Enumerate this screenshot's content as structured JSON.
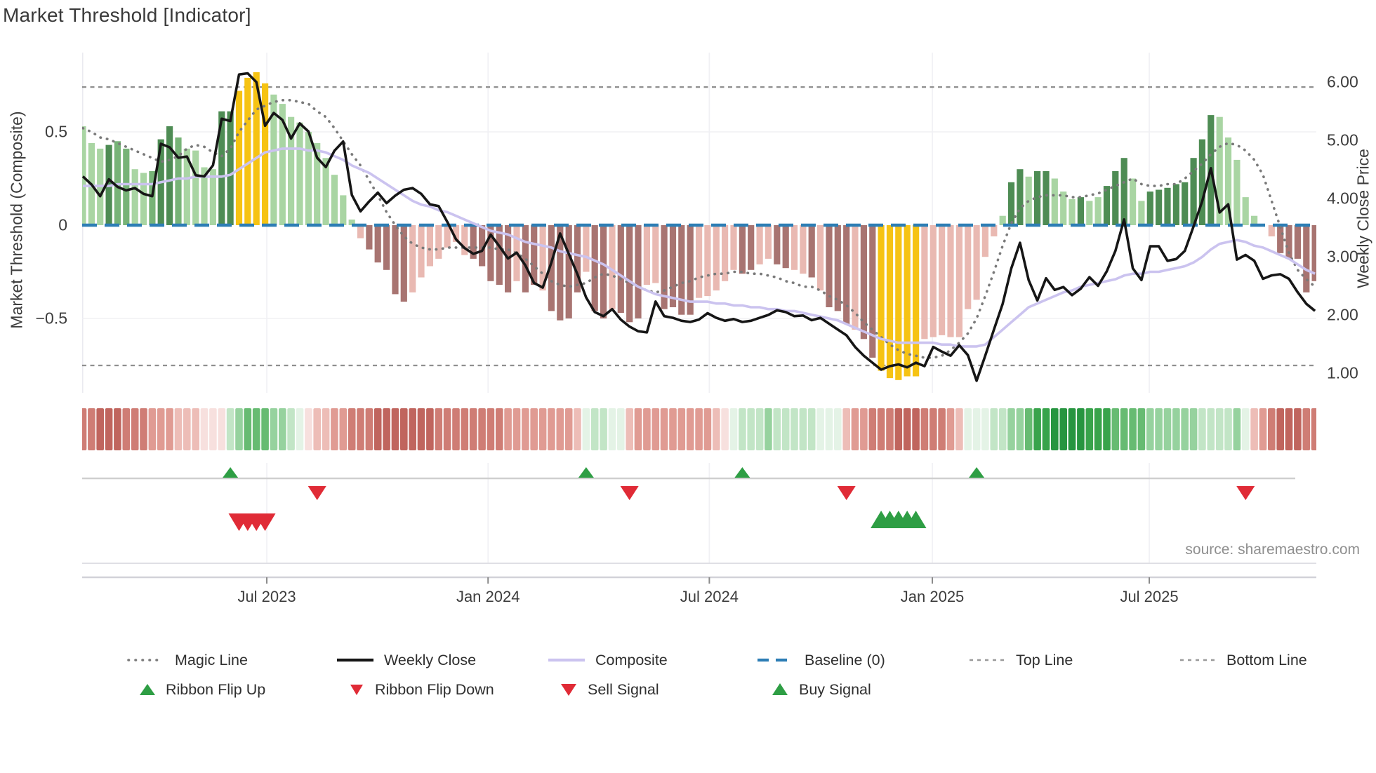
{
  "title": "Market Threshold [Indicator]",
  "source_credit": "source: sharemaestro.com",
  "left_axis": {
    "title": "Market Threshold (Composite)",
    "ticks": [
      {
        "label": "0.5",
        "value": 0.5
      },
      {
        "label": "0",
        "value": 0
      },
      {
        "label": "−0.5",
        "value": -0.5
      }
    ]
  },
  "right_axis": {
    "title": "Weekly Close Price",
    "ticks": [
      {
        "label": "6.00",
        "value": 6
      },
      {
        "label": "5.00",
        "value": 5
      },
      {
        "label": "4.00",
        "value": 4
      },
      {
        "label": "3.00",
        "value": 3
      },
      {
        "label": "2.00",
        "value": 2
      },
      {
        "label": "1.00",
        "value": 1
      }
    ]
  },
  "x_axis": {
    "ticks": [
      {
        "label": "Jul 2023",
        "week": 21.2
      },
      {
        "label": "Jan 2024",
        "week": 46.7
      },
      {
        "label": "Jul 2024",
        "week": 72.2
      },
      {
        "label": "Jan 2025",
        "week": 97.9
      },
      {
        "label": "Jul 2025",
        "week": 122.9
      }
    ]
  },
  "legend": {
    "row1": [
      {
        "label": "Magic Line",
        "swatch": "dotted-gray"
      },
      {
        "label": "Weekly Close",
        "swatch": "solid-black"
      },
      {
        "label": "Composite",
        "swatch": "solid-lavender"
      },
      {
        "label": "Baseline (0)",
        "swatch": "dashed-blue"
      },
      {
        "label": "Top Line",
        "swatch": "dotted-light"
      },
      {
        "label": "Bottom Line",
        "swatch": "dotted-light"
      }
    ],
    "row2": [
      {
        "label": "Ribbon Flip Up",
        "marker": "triangle-up-green"
      },
      {
        "label": "Ribbon Flip Down",
        "marker": "triangle-down-red"
      },
      {
        "label": "Sell Signal",
        "marker": "triangle-down-red"
      },
      {
        "label": "Buy Signal",
        "marker": "triangle-up-green"
      }
    ]
  },
  "colors": {
    "close_line": "#161616",
    "composite_line": "#cbc3ef",
    "magic_line": "#7a7a7a",
    "baseline": "#2d7eb5",
    "band_lines": "#8f8f8f",
    "grid": "#f0f0f4",
    "spine": "#e9e9ef",
    "flip_line": "#cfcfcf",
    "signal_green": "#2e9e44",
    "signal_red": "#e02b36",
    "bar_palette": {
      "L": "#a9d5a3",
      "M": "#77b377",
      "D": "#4e8c54",
      "G": "#f6c313",
      "p": "#e9b9b2",
      "m": "#a87471"
    },
    "ribbon_palette": {
      "r0": "#f7e0de",
      "r1": "#edbdb7",
      "r2": "#e09b93",
      "r3": "#cf7d75",
      "r4": "#c0655e",
      "g0": "#e4f3e6",
      "g1": "#c2e5c6",
      "g2": "#96d29e",
      "g3": "#67bb72",
      "g4": "#38a34b",
      "g5": "#279540"
    }
  },
  "signals": {
    "flip_up_weeks": [
      17,
      58,
      76,
      103
    ],
    "flip_down_weeks": [
      27,
      63,
      88,
      134
    ],
    "sell_weeks": [
      18,
      19,
      20,
      21
    ],
    "buy_weeks": [
      92,
      93,
      94,
      95,
      96
    ]
  },
  "chart_data": {
    "type": "bar+line",
    "title": "Market Threshold [Indicator]",
    "n_weeks": 143,
    "date_range": "Feb 2023 - Oct 2025 (weekly)",
    "left_ylim": [
      -0.9,
      0.92
    ],
    "right_ylim": [
      0.5,
      6.5
    ],
    "baseline": 0,
    "top_line": 0.74,
    "bottom_line": -0.752,
    "bars": {
      "name": "Market Threshold (Composite) histogram",
      "values": [
        0.53,
        0.44,
        0.41,
        0.43,
        0.45,
        0.41,
        0.3,
        0.28,
        0.29,
        0.46,
        0.53,
        0.47,
        0.41,
        0.4,
        0.31,
        0.3,
        0.61,
        0.61,
        0.72,
        0.79,
        0.82,
        0.76,
        0.7,
        0.65,
        0.58,
        0.55,
        0.5,
        0.44,
        0.36,
        0.27,
        0.16,
        0.03,
        -0.07,
        -0.13,
        -0.2,
        -0.24,
        -0.37,
        -0.41,
        -0.36,
        -0.28,
        -0.22,
        -0.18,
        -0.12,
        -0.09,
        -0.16,
        -0.18,
        -0.22,
        -0.3,
        -0.32,
        -0.36,
        -0.3,
        -0.36,
        -0.32,
        -0.35,
        -0.46,
        -0.51,
        -0.5,
        -0.36,
        -0.25,
        -0.46,
        -0.5,
        -0.45,
        -0.47,
        -0.52,
        -0.5,
        -0.32,
        -0.31,
        -0.45,
        -0.44,
        -0.48,
        -0.48,
        -0.39,
        -0.38,
        -0.35,
        -0.3,
        -0.24,
        -0.26,
        -0.24,
        -0.21,
        -0.18,
        -0.21,
        -0.23,
        -0.24,
        -0.26,
        -0.28,
        -0.35,
        -0.44,
        -0.46,
        -0.53,
        -0.56,
        -0.61,
        -0.71,
        -0.78,
        -0.82,
        -0.83,
        -0.81,
        -0.81,
        -0.61,
        -0.6,
        -0.59,
        -0.6,
        -0.6,
        -0.45,
        -0.4,
        -0.17,
        -0.06,
        0.05,
        0.23,
        0.3,
        0.26,
        0.29,
        0.29,
        0.25,
        0.18,
        0.14,
        0.15,
        0.13,
        0.15,
        0.21,
        0.29,
        0.36,
        0.25,
        0.13,
        0.18,
        0.19,
        0.2,
        0.22,
        0.23,
        0.36,
        0.46,
        0.59,
        0.58,
        0.47,
        0.35,
        0.15,
        0.05,
        0.0,
        -0.06,
        -0.15,
        -0.18,
        -0.18,
        -0.36,
        -0.3
      ],
      "color_keys": [
        "L",
        "L",
        "L",
        "D",
        "M",
        "M",
        "L",
        "L",
        "M",
        "D",
        "D",
        "M",
        "L",
        "L",
        "L",
        "L",
        "D",
        "D",
        "G",
        "G",
        "G",
        "G",
        "L",
        "L",
        "L",
        "L",
        "L",
        "L",
        "L",
        "L",
        "L",
        "L",
        "p",
        "m",
        "m",
        "m",
        "m",
        "m",
        "p",
        "p",
        "p",
        "p",
        "p",
        "p",
        "p",
        "m",
        "m",
        "m",
        "m",
        "m",
        "p",
        "m",
        "m",
        "p",
        "m",
        "m",
        "m",
        "m",
        "p",
        "m",
        "m",
        "p",
        "m",
        "m",
        "m",
        "p",
        "p",
        "m",
        "m",
        "m",
        "m",
        "p",
        "p",
        "p",
        "p",
        "p",
        "m",
        "m",
        "p",
        "p",
        "m",
        "m",
        "p",
        "p",
        "m",
        "p",
        "m",
        "m",
        "m",
        "p",
        "m",
        "m",
        "G",
        "G",
        "G",
        "G",
        "G",
        "p",
        "p",
        "p",
        "p",
        "p",
        "p",
        "p",
        "p",
        "p",
        "L",
        "D",
        "D",
        "L",
        "D",
        "D",
        "L",
        "L",
        "L",
        "D",
        "L",
        "L",
        "D",
        "D",
        "D",
        "L",
        "L",
        "D",
        "D",
        "D",
        "D",
        "D",
        "D",
        "D",
        "D",
        "L",
        "L",
        "L",
        "L",
        "L",
        "L",
        "p",
        "m",
        "m",
        "m",
        "m",
        "m"
      ]
    },
    "series": [
      {
        "name": "Weekly Close",
        "axis": "right",
        "values": [
          4.38,
          4.24,
          4.04,
          4.33,
          4.2,
          4.14,
          4.18,
          4.08,
          4.04,
          4.94,
          4.88,
          4.7,
          4.72,
          4.4,
          4.38,
          4.57,
          5.37,
          5.33,
          6.13,
          6.15,
          6.0,
          5.25,
          5.47,
          5.35,
          5.03,
          5.29,
          5.15,
          4.7,
          4.54,
          4.82,
          4.98,
          4.06,
          3.78,
          3.95,
          4.1,
          3.92,
          4.05,
          4.15,
          4.18,
          4.08,
          3.9,
          3.87,
          3.6,
          3.3,
          3.15,
          3.05,
          3.1,
          3.38,
          3.18,
          2.97,
          3.07,
          2.85,
          2.55,
          2.47,
          2.9,
          3.4,
          3.05,
          2.7,
          2.3,
          2.05,
          1.98,
          2.1,
          1.92,
          1.8,
          1.72,
          1.7,
          2.23,
          1.98,
          1.95,
          1.9,
          1.88,
          1.92,
          2.03,
          1.95,
          1.9,
          1.93,
          1.88,
          1.9,
          1.95,
          2.0,
          2.08,
          2.05,
          1.98,
          1.99,
          1.91,
          1.95,
          1.85,
          1.75,
          1.65,
          1.45,
          1.3,
          1.18,
          1.06,
          1.12,
          1.15,
          1.1,
          1.18,
          1.12,
          1.45,
          1.37,
          1.3,
          1.48,
          1.31,
          0.87,
          1.3,
          1.75,
          2.19,
          2.8,
          3.24,
          2.6,
          2.25,
          2.63,
          2.43,
          2.48,
          2.34,
          2.45,
          2.65,
          2.5,
          2.75,
          3.1,
          3.64,
          2.8,
          2.6,
          3.18,
          3.18,
          2.93,
          2.96,
          3.1,
          3.52,
          3.95,
          4.52,
          3.76,
          3.9,
          2.95,
          3.03,
          2.93,
          2.62,
          2.68,
          2.7,
          2.62,
          2.39,
          2.19,
          2.07
        ]
      },
      {
        "name": "Magic Line",
        "axis": "left",
        "values": [
          0.52,
          0.5,
          0.47,
          0.46,
          0.44,
          0.42,
          0.4,
          0.38,
          0.36,
          0.34,
          0.35,
          0.37,
          0.41,
          0.43,
          0.42,
          0.39,
          0.37,
          0.41,
          0.5,
          0.56,
          0.62,
          0.64,
          0.66,
          0.67,
          0.67,
          0.66,
          0.65,
          0.61,
          0.58,
          0.52,
          0.45,
          0.38,
          0.32,
          0.24,
          0.16,
          0.07,
          0.0,
          -0.06,
          -0.1,
          -0.12,
          -0.13,
          -0.13,
          -0.12,
          -0.12,
          -0.12,
          -0.12,
          -0.12,
          -0.12,
          -0.13,
          -0.13,
          -0.15,
          -0.18,
          -0.22,
          -0.26,
          -0.3,
          -0.32,
          -0.33,
          -0.32,
          -0.31,
          -0.28,
          -0.26,
          -0.27,
          -0.29,
          -0.31,
          -0.33,
          -0.35,
          -0.36,
          -0.35,
          -0.33,
          -0.31,
          -0.3,
          -0.28,
          -0.27,
          -0.26,
          -0.26,
          -0.25,
          -0.25,
          -0.26,
          -0.26,
          -0.27,
          -0.28,
          -0.3,
          -0.31,
          -0.33,
          -0.33,
          -0.35,
          -0.38,
          -0.4,
          -0.43,
          -0.47,
          -0.52,
          -0.56,
          -0.6,
          -0.64,
          -0.67,
          -0.69,
          -0.7,
          -0.71,
          -0.71,
          -0.7,
          -0.67,
          -0.63,
          -0.58,
          -0.5,
          -0.38,
          -0.25,
          -0.11,
          0.01,
          0.09,
          0.13,
          0.15,
          0.16,
          0.16,
          0.16,
          0.15,
          0.15,
          0.16,
          0.17,
          0.19,
          0.21,
          0.23,
          0.25,
          0.22,
          0.21,
          0.21,
          0.22,
          0.22,
          0.25,
          0.29,
          0.33,
          0.38,
          0.42,
          0.44,
          0.43,
          0.4,
          0.35,
          0.27,
          0.13,
          -0.01,
          -0.15,
          -0.24,
          -0.29,
          -0.33
        ]
      },
      {
        "name": "Composite",
        "axis": "left",
        "values": [
          0.21,
          0.21,
          0.21,
          0.21,
          0.22,
          0.22,
          0.22,
          0.22,
          0.22,
          0.23,
          0.24,
          0.25,
          0.25,
          0.26,
          0.26,
          0.26,
          0.26,
          0.27,
          0.3,
          0.33,
          0.36,
          0.39,
          0.4,
          0.41,
          0.41,
          0.41,
          0.4,
          0.4,
          0.39,
          0.37,
          0.35,
          0.32,
          0.3,
          0.28,
          0.25,
          0.22,
          0.19,
          0.16,
          0.13,
          0.11,
          0.1,
          0.08,
          0.07,
          0.05,
          0.03,
          0.01,
          -0.01,
          -0.03,
          -0.04,
          -0.05,
          -0.07,
          -0.09,
          -0.1,
          -0.11,
          -0.12,
          -0.14,
          -0.15,
          -0.16,
          -0.17,
          -0.19,
          -0.21,
          -0.24,
          -0.27,
          -0.3,
          -0.33,
          -0.35,
          -0.37,
          -0.38,
          -0.39,
          -0.4,
          -0.41,
          -0.41,
          -0.41,
          -0.42,
          -0.42,
          -0.43,
          -0.43,
          -0.44,
          -0.44,
          -0.45,
          -0.45,
          -0.46,
          -0.46,
          -0.47,
          -0.48,
          -0.49,
          -0.5,
          -0.51,
          -0.53,
          -0.55,
          -0.57,
          -0.59,
          -0.61,
          -0.62,
          -0.63,
          -0.63,
          -0.63,
          -0.63,
          -0.63,
          -0.64,
          -0.64,
          -0.65,
          -0.65,
          -0.65,
          -0.64,
          -0.6,
          -0.56,
          -0.52,
          -0.48,
          -0.44,
          -0.42,
          -0.4,
          -0.38,
          -0.36,
          -0.35,
          -0.33,
          -0.32,
          -0.31,
          -0.3,
          -0.29,
          -0.27,
          -0.26,
          -0.26,
          -0.25,
          -0.25,
          -0.24,
          -0.23,
          -0.22,
          -0.2,
          -0.17,
          -0.13,
          -0.1,
          -0.09,
          -0.08,
          -0.09,
          -0.11,
          -0.12,
          -0.14,
          -0.16,
          -0.18,
          -0.21,
          -0.24,
          -0.26
        ]
      }
    ],
    "ribbon": [
      "r3",
      "r3",
      "r4",
      "r4",
      "r4",
      "r3",
      "r3",
      "r3",
      "r2",
      "r2",
      "r2",
      "r1",
      "r1",
      "r1",
      "r0",
      "r0",
      "r0",
      "g1",
      "g2",
      "g3",
      "g3",
      "g3",
      "g2",
      "g2",
      "g1",
      "g0",
      "r0",
      "r1",
      "r1",
      "r2",
      "r2",
      "r3",
      "r3",
      "r3",
      "r4",
      "r4",
      "r4",
      "r4",
      "r4",
      "r4",
      "r4",
      "r3",
      "r3",
      "r3",
      "r3",
      "r3",
      "r3",
      "r3",
      "r3",
      "r2",
      "r2",
      "r2",
      "r2",
      "r2",
      "r2",
      "r2",
      "r2",
      "r1",
      "g0",
      "g1",
      "g1",
      "g0",
      "g0",
      "r1",
      "r2",
      "r2",
      "r2",
      "r2",
      "r2",
      "r2",
      "r2",
      "r2",
      "r2",
      "r1",
      "r0",
      "g0",
      "g1",
      "g1",
      "g1",
      "g2",
      "g1",
      "g1",
      "g1",
      "g1",
      "g1",
      "g0",
      "g0",
      "g0",
      "r1",
      "r2",
      "r2",
      "r3",
      "r3",
      "r3",
      "r4",
      "r4",
      "r4",
      "r3",
      "r3",
      "r3",
      "r2",
      "r1",
      "g0",
      "g0",
      "g0",
      "g1",
      "g1",
      "g2",
      "g2",
      "g3",
      "g4",
      "g4",
      "g5",
      "g5",
      "g5",
      "g5",
      "g4",
      "g4",
      "g4",
      "g3",
      "g3",
      "g3",
      "g3",
      "g2",
      "g2",
      "g2",
      "g2",
      "g2",
      "g2",
      "g1",
      "g1",
      "g1",
      "g1",
      "g2",
      "g0",
      "r1",
      "r2",
      "r3",
      "r4",
      "r4",
      "r4",
      "r3",
      "r3"
    ]
  }
}
